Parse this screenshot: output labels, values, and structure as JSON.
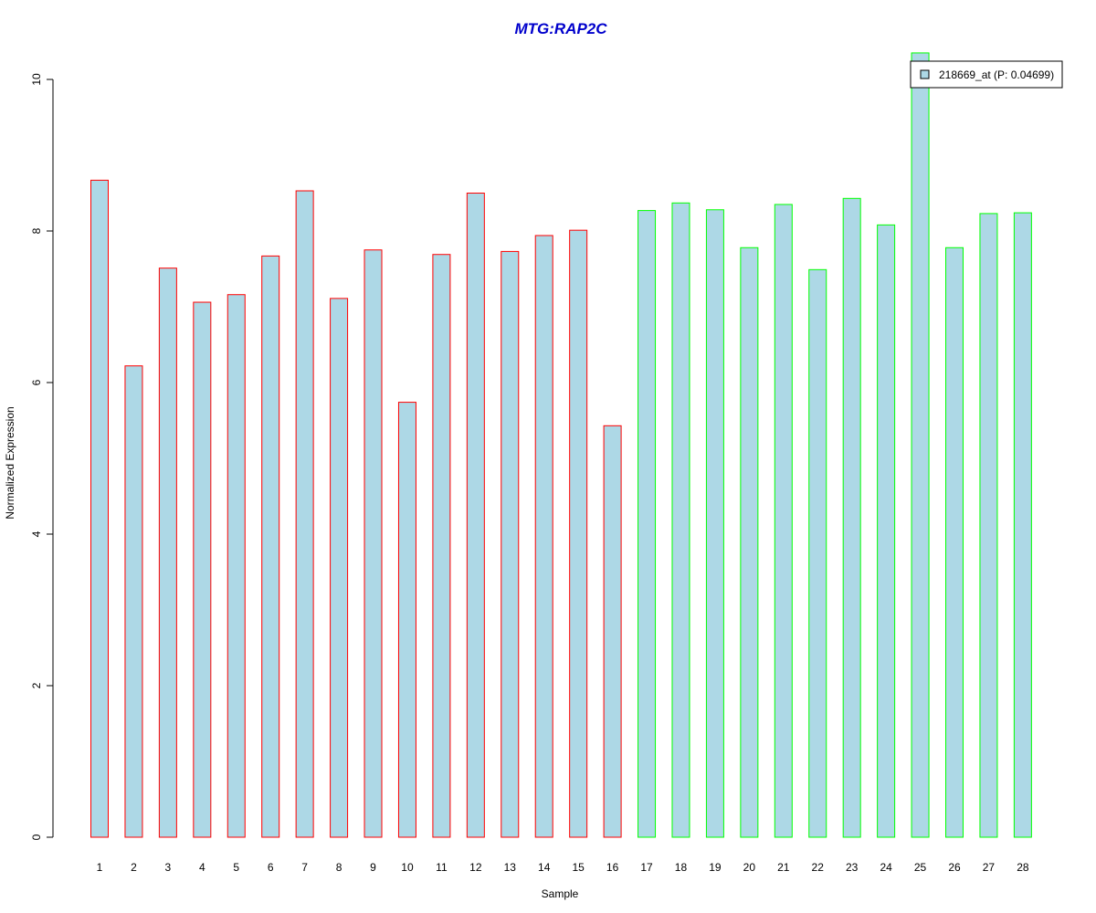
{
  "chart_data": {
    "type": "bar",
    "title": "MTG:RAP2C",
    "xlabel": "Sample",
    "ylabel": "Normalized Expression",
    "ylim": [
      0,
      10
    ],
    "yticks": [
      0,
      2,
      4,
      6,
      8,
      10
    ],
    "categories": [
      "1",
      "2",
      "3",
      "4",
      "5",
      "6",
      "7",
      "8",
      "9",
      "10",
      "11",
      "12",
      "13",
      "14",
      "15",
      "16",
      "17",
      "18",
      "19",
      "20",
      "21",
      "22",
      "23",
      "24",
      "25",
      "26",
      "27",
      "28"
    ],
    "series": [
      {
        "name": "218669_at (P: 0.04699)",
        "values": [
          8.67,
          6.22,
          7.51,
          7.06,
          7.16,
          7.67,
          8.53,
          7.11,
          7.75,
          5.74,
          7.69,
          8.5,
          7.73,
          7.94,
          8.01,
          5.43,
          8.27,
          8.37,
          8.28,
          7.78,
          8.35,
          7.49,
          8.43,
          8.08,
          10.35,
          7.78,
          8.23,
          8.24
        ]
      }
    ],
    "bar_fill": "#ADD8E6",
    "group_border_colors": [
      "#FF0000",
      "#00FF00"
    ],
    "group_sizes": [
      16,
      12
    ],
    "title_color": "#0000CC",
    "legend_position": "top-right",
    "grid": false
  }
}
